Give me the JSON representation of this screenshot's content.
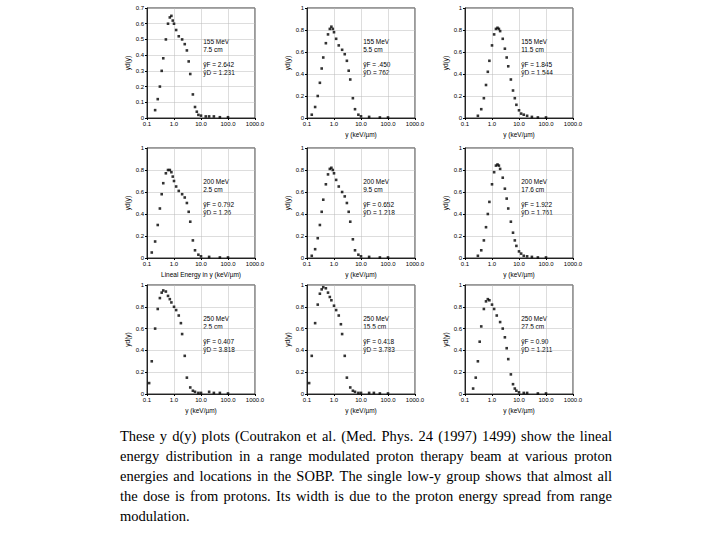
{
  "caption": "These y d(y) plots (Coutrakon et al. (Med. Phys. 24 (1997) 1499) show the lineal energy distribution in a range modulated proton therapy beam at various proton energies and locations in the SOBP. The single low-y group shows that almost all the dose is from protons. Its width is due to the proton energy spread from range modulation.",
  "chart_data": [
    {
      "type": "scatter",
      "ylabel": "yd(y)",
      "annotations": [
        "155 MeV",
        "7.5 cm",
        "ȳF = 2.642",
        "ȳD = 1.231"
      ],
      "log": "x",
      "grid": true,
      "marker": "square",
      "color": "#000000",
      "xlim": [
        0.1,
        1000
      ],
      "xticks": [
        {
          "value": 0.1,
          "label": "0.1"
        },
        {
          "value": 1,
          "label": "1.0"
        },
        {
          "value": 10,
          "label": "10.0"
        },
        {
          "value": 100,
          "label": "100.0"
        },
        {
          "value": 1000,
          "label": "1000.0"
        }
      ],
      "ylim": [
        0,
        0.7
      ],
      "yticks": [
        0,
        0.1,
        0.2,
        0.3,
        0.4,
        0.5,
        0.6,
        0.7
      ],
      "x": [
        0.2,
        0.25,
        0.3,
        0.35,
        0.4,
        0.5,
        0.6,
        0.7,
        0.8,
        0.9,
        1.0,
        1.2,
        1.5,
        2,
        2.5,
        3,
        3.5,
        4,
        5,
        6,
        7,
        8,
        10,
        15,
        20,
        30,
        50,
        100
      ],
      "values": [
        0.05,
        0.12,
        0.2,
        0.3,
        0.38,
        0.5,
        0.6,
        0.64,
        0.65,
        0.62,
        0.6,
        0.56,
        0.52,
        0.5,
        0.47,
        0.43,
        0.36,
        0.28,
        0.15,
        0.07,
        0.04,
        0.02,
        0.015,
        0.01,
        0.01,
        0.01,
        0.005,
        0.005
      ]
    },
    {
      "type": "scatter",
      "xlabel": "y (keV/µm)",
      "ylabel": "yd(y)",
      "annotations": [
        "155 MeV",
        "5.5 cm",
        "ȳF = .450",
        "ȳD = 762"
      ],
      "log": "x",
      "grid": true,
      "marker": "square",
      "color": "#000000",
      "xlim": [
        0.1,
        1000
      ],
      "xticks": [
        {
          "value": 0.1,
          "label": "0.1"
        },
        {
          "value": 1,
          "label": "1.0"
        },
        {
          "value": 10,
          "label": "10.0"
        },
        {
          "value": 100,
          "label": "100.0"
        },
        {
          "value": 1000,
          "label": "1000.0"
        }
      ],
      "ylim": [
        0,
        1
      ],
      "yticks": [
        0,
        0.2,
        0.4,
        0.6,
        0.8,
        1
      ],
      "x": [
        0.15,
        0.2,
        0.25,
        0.3,
        0.35,
        0.4,
        0.5,
        0.6,
        0.7,
        0.8,
        0.9,
        1.0,
        1.2,
        1.5,
        2,
        2.5,
        3,
        3.5,
        4,
        5,
        6,
        8,
        10,
        20,
        50,
        100
      ],
      "values": [
        0.03,
        0.1,
        0.2,
        0.32,
        0.45,
        0.55,
        0.68,
        0.76,
        0.81,
        0.83,
        0.81,
        0.78,
        0.72,
        0.66,
        0.62,
        0.58,
        0.52,
        0.43,
        0.35,
        0.18,
        0.08,
        0.03,
        0.015,
        0.01,
        0.005,
        0.005
      ]
    },
    {
      "type": "scatter",
      "xlabel": "y (keV/µm)",
      "ylabel": "yd(y)",
      "annotations": [
        "155 MeV",
        "11.5 cm",
        "ȳF = 1.845",
        "ȳD = 1.544"
      ],
      "log": "x",
      "grid": true,
      "marker": "square",
      "color": "#000000",
      "xlim": [
        0.1,
        1000
      ],
      "xticks": [
        {
          "value": 0.1,
          "label": "0.1"
        },
        {
          "value": 1,
          "label": "1.0"
        },
        {
          "value": 10,
          "label": "10.0"
        },
        {
          "value": 100,
          "label": "100.0"
        },
        {
          "value": 1000,
          "label": "1000.0"
        }
      ],
      "ylim": [
        0,
        1
      ],
      "yticks": [
        0,
        0.2,
        0.4,
        0.6,
        0.8,
        1
      ],
      "x": [
        0.3,
        0.4,
        0.5,
        0.6,
        0.7,
        0.8,
        1.0,
        1.2,
        1.4,
        1.6,
        1.8,
        2.0,
        2.5,
        3,
        3.5,
        4,
        5,
        6,
        7,
        8,
        10,
        12,
        15,
        20,
        30,
        50,
        100
      ],
      "values": [
        0.02,
        0.08,
        0.18,
        0.3,
        0.42,
        0.52,
        0.66,
        0.76,
        0.81,
        0.82,
        0.81,
        0.79,
        0.72,
        0.63,
        0.55,
        0.47,
        0.35,
        0.25,
        0.18,
        0.12,
        0.07,
        0.04,
        0.03,
        0.02,
        0.01,
        0.005,
        0.005
      ]
    },
    {
      "type": "scatter",
      "xlabel": "Lineal Energy in y (keV/µm)",
      "ylabel": "yd(y)",
      "annotations": [
        "200 MeV",
        "2.5 cm",
        "ȳF = 0.792",
        "ȳD = 1.26"
      ],
      "log": "x",
      "grid": true,
      "marker": "square",
      "color": "#000000",
      "xlim": [
        0.1,
        1000
      ],
      "xticks": [
        {
          "value": 0.1,
          "label": "0.1"
        },
        {
          "value": 1,
          "label": "1.0"
        },
        {
          "value": 10,
          "label": "10.0"
        },
        {
          "value": 100,
          "label": "100.0"
        },
        {
          "value": 1000,
          "label": "1000.0"
        }
      ],
      "ylim": [
        0,
        1
      ],
      "yticks": [
        0,
        0.2,
        0.4,
        0.6,
        0.8,
        1
      ],
      "x": [
        0.15,
        0.2,
        0.25,
        0.3,
        0.35,
        0.4,
        0.5,
        0.6,
        0.7,
        0.8,
        0.9,
        1.0,
        1.2,
        1.5,
        2,
        2.5,
        3,
        3.5,
        4,
        5,
        6,
        8,
        10,
        20,
        50,
        100
      ],
      "values": [
        0.05,
        0.15,
        0.3,
        0.45,
        0.58,
        0.68,
        0.77,
        0.8,
        0.8,
        0.78,
        0.74,
        0.7,
        0.65,
        0.61,
        0.58,
        0.55,
        0.5,
        0.42,
        0.33,
        0.16,
        0.07,
        0.03,
        0.015,
        0.01,
        0.005,
        0.005
      ]
    },
    {
      "type": "scatter",
      "xlabel": "y (keV/µm)",
      "ylabel": "yd(y)",
      "annotations": [
        "200 MeV",
        "9.5 cm",
        "ȳF = 0.652",
        "ȳD = 1.218"
      ],
      "log": "x",
      "grid": true,
      "marker": "square",
      "color": "#000000",
      "xlim": [
        0.1,
        1000
      ],
      "xticks": [
        {
          "value": 0.1,
          "label": "0.1"
        },
        {
          "value": 1,
          "label": "1.0"
        },
        {
          "value": 10,
          "label": "10.0"
        },
        {
          "value": 100,
          "label": "100.0"
        },
        {
          "value": 1000,
          "label": "1000.0"
        }
      ],
      "ylim": [
        0,
        1
      ],
      "yticks": [
        0,
        0.2,
        0.4,
        0.6,
        0.8,
        1
      ],
      "x": [
        0.15,
        0.2,
        0.25,
        0.3,
        0.35,
        0.4,
        0.5,
        0.6,
        0.7,
        0.8,
        0.9,
        1.0,
        1.2,
        1.5,
        2,
        2.5,
        3,
        3.5,
        4,
        5,
        6,
        8,
        10,
        20,
        50,
        100
      ],
      "values": [
        0.02,
        0.08,
        0.18,
        0.3,
        0.42,
        0.53,
        0.67,
        0.76,
        0.81,
        0.82,
        0.8,
        0.77,
        0.71,
        0.65,
        0.6,
        0.56,
        0.5,
        0.42,
        0.33,
        0.17,
        0.07,
        0.03,
        0.015,
        0.01,
        0.005,
        0.005
      ]
    },
    {
      "type": "scatter",
      "xlabel": "y (keV/µm)",
      "ylabel": "yd(y)",
      "annotations": [
        "200 MeV",
        "17.6 cm",
        "ȳF = 1.922",
        "ȳD = 1.761"
      ],
      "log": "x",
      "grid": true,
      "marker": "square",
      "color": "#000000",
      "xlim": [
        0.1,
        1000
      ],
      "xticks": [
        {
          "value": 0.1,
          "label": "0.1"
        },
        {
          "value": 1,
          "label": "1.0"
        },
        {
          "value": 10,
          "label": "10.0"
        },
        {
          "value": 100,
          "label": "100.0"
        },
        {
          "value": 1000,
          "label": "1000.0"
        }
      ],
      "ylim": [
        0,
        1
      ],
      "yticks": [
        0,
        0.2,
        0.4,
        0.6,
        0.8,
        1
      ],
      "x": [
        0.3,
        0.4,
        0.5,
        0.6,
        0.7,
        0.8,
        1.0,
        1.2,
        1.4,
        1.6,
        1.8,
        2.0,
        2.5,
        3,
        3.5,
        4,
        5,
        6,
        7,
        8,
        10,
        12,
        15,
        20,
        30,
        50,
        100
      ],
      "values": [
        0.02,
        0.07,
        0.16,
        0.28,
        0.4,
        0.51,
        0.67,
        0.78,
        0.84,
        0.85,
        0.84,
        0.81,
        0.73,
        0.63,
        0.54,
        0.45,
        0.33,
        0.23,
        0.16,
        0.11,
        0.06,
        0.04,
        0.02,
        0.015,
        0.01,
        0.005,
        0.005
      ]
    },
    {
      "type": "scatter",
      "xlabel": "y (keV/µm)",
      "ylabel": "yd(y)",
      "annotations": [
        "250 MeV",
        "2.5 cm",
        "ȳF = 0.407",
        "ȳD = 3.818"
      ],
      "log": "x",
      "grid": true,
      "marker": "square",
      "color": "#000000",
      "xlim": [
        0.1,
        1000
      ],
      "xticks": [
        {
          "value": 0.1,
          "label": "0.1"
        },
        {
          "value": 1,
          "label": "1.0"
        },
        {
          "value": 10,
          "label": "10.0"
        },
        {
          "value": 100,
          "label": "100.0"
        },
        {
          "value": 1000,
          "label": "1000.0"
        }
      ],
      "ylim": [
        0,
        1
      ],
      "yticks": [
        0,
        0.2,
        0.4,
        0.6,
        0.8,
        1
      ],
      "x": [
        0.12,
        0.15,
        0.2,
        0.25,
        0.3,
        0.35,
        0.4,
        0.5,
        0.6,
        0.7,
        0.8,
        1.0,
        1.2,
        1.5,
        1.8,
        2.0,
        2.5,
        3,
        4,
        5,
        6,
        8,
        10,
        20,
        30,
        50,
        100
      ],
      "values": [
        0.1,
        0.3,
        0.6,
        0.78,
        0.88,
        0.93,
        0.95,
        0.94,
        0.9,
        0.87,
        0.84,
        0.8,
        0.77,
        0.72,
        0.65,
        0.55,
        0.35,
        0.15,
        0.06,
        0.03,
        0.02,
        0.01,
        0.01,
        0.02,
        0.01,
        0.01,
        0.005
      ]
    },
    {
      "type": "scatter",
      "xlabel": "y (keV/µm)",
      "ylabel": "yd(y)",
      "annotations": [
        "250 MeV",
        "15.5 cm",
        "ȳF = 0.418",
        "ȳD = 3.783"
      ],
      "log": "x",
      "grid": true,
      "marker": "square",
      "color": "#000000",
      "xlim": [
        0.1,
        1000
      ],
      "xticks": [
        {
          "value": 0.1,
          "label": "0.1"
        },
        {
          "value": 1,
          "label": "1.0"
        },
        {
          "value": 10,
          "label": "10.0"
        },
        {
          "value": 100,
          "label": "100.0"
        },
        {
          "value": 1000,
          "label": "1000.0"
        }
      ],
      "ylim": [
        0,
        1
      ],
      "yticks": [
        0,
        0.2,
        0.4,
        0.6,
        0.8,
        1
      ],
      "x": [
        0.12,
        0.15,
        0.2,
        0.25,
        0.3,
        0.35,
        0.4,
        0.5,
        0.6,
        0.7,
        0.8,
        1.0,
        1.2,
        1.5,
        1.8,
        2.0,
        2.5,
        3,
        4,
        5,
        6,
        8,
        10,
        20,
        30,
        50,
        100
      ],
      "values": [
        0.1,
        0.35,
        0.65,
        0.82,
        0.92,
        0.96,
        0.98,
        0.97,
        0.93,
        0.89,
        0.86,
        0.81,
        0.77,
        0.72,
        0.64,
        0.55,
        0.35,
        0.15,
        0.06,
        0.03,
        0.02,
        0.01,
        0.01,
        0.01,
        0.01,
        0.005,
        0.005
      ]
    },
    {
      "type": "scatter",
      "xlabel": "y (keV/µm)",
      "ylabel": "yd(y)",
      "annotations": [
        "250 MeV",
        "27.5 cm",
        "ȳF = 0.90",
        "ȳD = 1.211"
      ],
      "log": "x",
      "grid": true,
      "marker": "square",
      "color": "#000000",
      "xlim": [
        0.1,
        1000
      ],
      "xticks": [
        {
          "value": 0.1,
          "label": "0.1"
        },
        {
          "value": 1,
          "label": "1.0"
        },
        {
          "value": 10,
          "label": "10.0"
        },
        {
          "value": 100,
          "label": "100.0"
        },
        {
          "value": 1000,
          "label": "1000.0"
        }
      ],
      "ylim": [
        0,
        1
      ],
      "yticks": [
        0,
        0.2,
        0.4,
        0.6,
        0.8,
        1
      ],
      "x": [
        0.2,
        0.25,
        0.3,
        0.35,
        0.4,
        0.5,
        0.6,
        0.7,
        0.8,
        1.0,
        1.2,
        1.5,
        2,
        2.5,
        3,
        3.5,
        4,
        5,
        6,
        7,
        8,
        10,
        15,
        20,
        50,
        100
      ],
      "values": [
        0.05,
        0.15,
        0.3,
        0.48,
        0.62,
        0.78,
        0.85,
        0.87,
        0.86,
        0.82,
        0.78,
        0.72,
        0.66,
        0.6,
        0.52,
        0.42,
        0.32,
        0.18,
        0.09,
        0.05,
        0.03,
        0.015,
        0.01,
        0.01,
        0.005,
        0.005
      ]
    }
  ]
}
